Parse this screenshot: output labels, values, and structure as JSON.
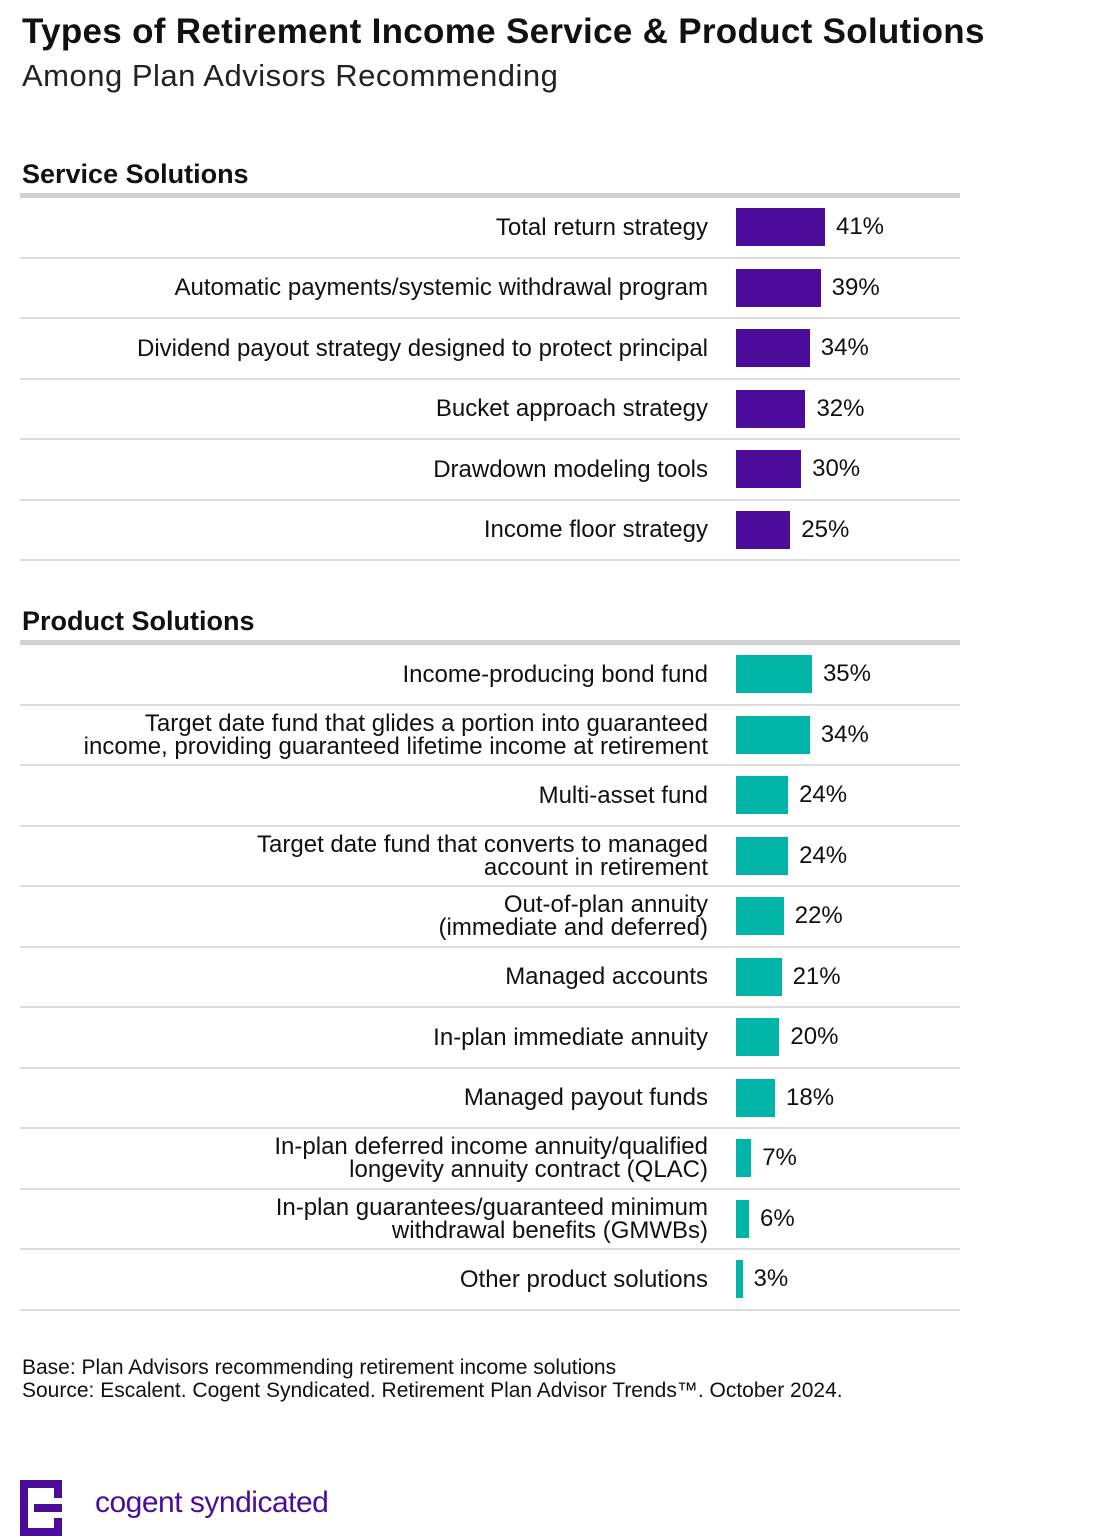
{
  "header": {
    "title": "Types of Retirement Income Service & Product Solutions",
    "subtitle": "Among Plan Advisors Recommending"
  },
  "colors": {
    "service_bar": "#4b0c99",
    "product_bar": "#00b4a7",
    "logo": "#4b0c99"
  },
  "footnote": {
    "base": "Base: Plan Advisors recommending retirement income solutions",
    "source": "Source: Escalent. Cogent Syndicated. Retirement Plan Advisor Trends™. October 2024."
  },
  "brand": {
    "name": "cogent syndicated",
    "logo_icon": "cogent-logo-icon"
  },
  "chart_data": [
    {
      "type": "bar",
      "orientation": "horizontal",
      "title": "Service Solutions",
      "unit": "%",
      "xlim": [
        0,
        100
      ],
      "categories": [
        "Total return strategy",
        "Automatic payments/systemic withdrawal program",
        "Dividend payout strategy designed to protect principal",
        "Bucket approach strategy",
        "Drawdown modeling tools",
        "Income floor strategy"
      ],
      "values": [
        41,
        39,
        34,
        32,
        30,
        25
      ],
      "labels": [
        "41%",
        "39%",
        "34%",
        "32%",
        "30%",
        "25%"
      ]
    },
    {
      "type": "bar",
      "orientation": "horizontal",
      "title": "Product Solutions",
      "unit": "%",
      "xlim": [
        0,
        100
      ],
      "categories": [
        "Income-producing bond fund",
        "Target date fund that glides a portion into guaranteed\nincome, providing guaranteed lifetime income at retirement",
        "Multi-asset fund",
        "Target date fund that converts to managed\naccount in retirement",
        "Out-of-plan annuity\n(immediate and deferred)",
        "Managed accounts",
        "In-plan immediate annuity",
        "Managed payout funds",
        "In-plan deferred income annuity/qualified\nlongevity annuity contract (QLAC)",
        "In-plan guarantees/guaranteed minimum\nwithdrawal benefits (GMWBs)",
        "Other product solutions"
      ],
      "values": [
        35,
        34,
        24,
        24,
        22,
        21,
        20,
        18,
        7,
        6,
        3
      ],
      "labels": [
        "35%",
        "34%",
        "24%",
        "24%",
        "22%",
        "21%",
        "20%",
        "18%",
        "7%",
        "6%",
        "3%"
      ]
    }
  ]
}
